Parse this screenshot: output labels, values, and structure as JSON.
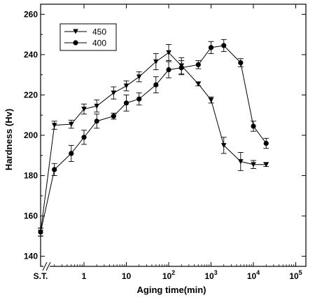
{
  "chart_data": {
    "type": "line",
    "title": "",
    "xlabel": "Aging time(min)",
    "ylabel": "Hardness (Hv)",
    "x_scale": "log",
    "xlim": [
      0.01,
      100000
    ],
    "ylim": [
      135,
      265
    ],
    "x_tick_labels": [
      {
        "value": 0.01,
        "label": "S.T."
      },
      {
        "value": 1,
        "label": "1"
      },
      {
        "value": 10,
        "label": "10"
      },
      {
        "value": 100,
        "label": "10",
        "sup": "2"
      },
      {
        "value": 1000,
        "label": "10",
        "sup": "3"
      },
      {
        "value": 10000,
        "label": "10",
        "sup": "4"
      },
      {
        "value": 100000,
        "label": "10",
        "sup": "5"
      }
    ],
    "y_ticks": [
      140,
      160,
      180,
      200,
      220,
      240,
      260
    ],
    "grid": false,
    "legend_position": "top-left",
    "series": [
      {
        "name": "450",
        "marker": "triangle-down",
        "points": [
          {
            "x": 0.01,
            "y": 152,
            "err": 2
          },
          {
            "x": 0.2,
            "y": 205,
            "err": 2
          },
          {
            "x": 0.5,
            "y": 205.5,
            "err": 2
          },
          {
            "x": 1,
            "y": 213,
            "err": 2.5
          },
          {
            "x": 2,
            "y": 214.5,
            "err": 3
          },
          {
            "x": 5,
            "y": 221,
            "err": 3
          },
          {
            "x": 10,
            "y": 224.5,
            "err": 2.5
          },
          {
            "x": 20,
            "y": 229,
            "err": 2.5
          },
          {
            "x": 50,
            "y": 236.5,
            "err": 4
          },
          {
            "x": 100,
            "y": 241,
            "err": 4
          },
          {
            "x": 200,
            "y": 234.5,
            "err": 4
          },
          {
            "x": 500,
            "y": 225.5,
            "err": 1
          },
          {
            "x": 1000,
            "y": 217.5,
            "err": 1.5
          },
          {
            "x": 2000,
            "y": 195,
            "err": 4
          },
          {
            "x": 5000,
            "y": 187,
            "err": 4.5
          },
          {
            "x": 10000,
            "y": 185.5,
            "err": 2
          },
          {
            "x": 20000,
            "y": 185.5,
            "err": 1
          }
        ]
      },
      {
        "name": "400",
        "marker": "circle",
        "points": [
          {
            "x": 0.01,
            "y": 152,
            "err": 2
          },
          {
            "x": 0.2,
            "y": 183,
            "err": 3
          },
          {
            "x": 0.5,
            "y": 191,
            "err": 4
          },
          {
            "x": 1,
            "y": 199,
            "err": 3.5
          },
          {
            "x": 2,
            "y": 207,
            "err": 3.5
          },
          {
            "x": 5,
            "y": 209.5,
            "err": 1.5
          },
          {
            "x": 10,
            "y": 216,
            "err": 4
          },
          {
            "x": 20,
            "y": 218,
            "err": 3
          },
          {
            "x": 50,
            "y": 225,
            "err": 4
          },
          {
            "x": 100,
            "y": 232.5,
            "err": 4
          },
          {
            "x": 200,
            "y": 233.5,
            "err": 3.5
          },
          {
            "x": 500,
            "y": 235,
            "err": 2
          },
          {
            "x": 1000,
            "y": 243.5,
            "err": 3
          },
          {
            "x": 2000,
            "y": 244.5,
            "err": 3
          },
          {
            "x": 5000,
            "y": 236,
            "err": 2
          },
          {
            "x": 10000,
            "y": 204.5,
            "err": 2.5
          },
          {
            "x": 20000,
            "y": 196,
            "err": 2.5
          }
        ]
      }
    ]
  }
}
